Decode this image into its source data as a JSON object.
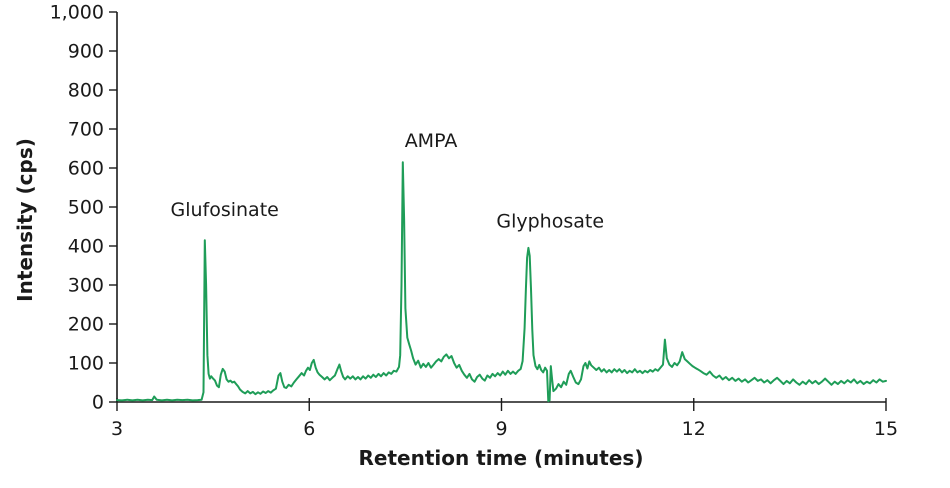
{
  "figure": {
    "background_color": "#ffffff",
    "text_color": "#1a1a1a",
    "axis_color": "#1a1a1a"
  },
  "chart_data": {
    "type": "line",
    "title": "",
    "xlabel": "Retention time (minutes)",
    "ylabel": "Intensity (cps)",
    "xlim": [
      3,
      15
    ],
    "ylim": [
      0,
      1000
    ],
    "xticks": [
      3,
      6,
      9,
      12,
      15
    ],
    "xtick_labels": [
      "3",
      "6",
      "9",
      "12",
      "15"
    ],
    "yticks": [
      0,
      100,
      200,
      300,
      400,
      500,
      600,
      700,
      800,
      900,
      1000
    ],
    "ytick_labels": [
      "0",
      "100",
      "200",
      "300",
      "400",
      "500",
      "600",
      "700",
      "800",
      "900",
      "1,000"
    ],
    "grid": false,
    "legend": "none",
    "line_color": "#1f9d58",
    "line_width": 2,
    "peaks": [
      {
        "name": "Glufosinate",
        "retention_time_min": 4.4,
        "apex_intensity_cps": 415
      },
      {
        "name": "AMPA",
        "retention_time_min": 7.5,
        "apex_intensity_cps": 615
      },
      {
        "name": "Glyphosate",
        "retention_time_min": 9.4,
        "apex_intensity_cps": 395
      }
    ],
    "annotations": [
      {
        "label": "Glufosinate",
        "t": 4.68,
        "intensity": 495
      },
      {
        "label": "AMPA",
        "t": 7.9,
        "intensity": 672
      },
      {
        "label": "Glyphosate",
        "t": 9.76,
        "intensity": 465
      }
    ],
    "series": [
      {
        "name": "chromatogram",
        "points": [
          [
            3.0,
            5
          ],
          [
            3.08,
            4
          ],
          [
            3.16,
            6
          ],
          [
            3.24,
            4
          ],
          [
            3.32,
            6
          ],
          [
            3.4,
            4
          ],
          [
            3.48,
            6
          ],
          [
            3.55,
            5
          ],
          [
            3.58,
            14
          ],
          [
            3.62,
            6
          ],
          [
            3.7,
            4
          ],
          [
            3.78,
            6
          ],
          [
            3.86,
            4
          ],
          [
            3.94,
            6
          ],
          [
            4.02,
            5
          ],
          [
            4.1,
            6
          ],
          [
            4.18,
            4
          ],
          [
            4.26,
            5
          ],
          [
            4.32,
            6
          ],
          [
            4.35,
            25
          ],
          [
            4.37,
            415
          ],
          [
            4.39,
            300
          ],
          [
            4.41,
            120
          ],
          [
            4.43,
            72
          ],
          [
            4.45,
            60
          ],
          [
            4.47,
            66
          ],
          [
            4.5,
            60
          ],
          [
            4.53,
            55
          ],
          [
            4.56,
            42
          ],
          [
            4.59,
            38
          ],
          [
            4.62,
            70
          ],
          [
            4.65,
            85
          ],
          [
            4.68,
            78
          ],
          [
            4.71,
            58
          ],
          [
            4.74,
            52
          ],
          [
            4.77,
            55
          ],
          [
            4.8,
            50
          ],
          [
            4.83,
            52
          ],
          [
            4.86,
            46
          ],
          [
            4.89,
            40
          ],
          [
            4.92,
            32
          ],
          [
            4.96,
            26
          ],
          [
            5.0,
            22
          ],
          [
            5.04,
            28
          ],
          [
            5.08,
            22
          ],
          [
            5.12,
            26
          ],
          [
            5.16,
            20
          ],
          [
            5.2,
            25
          ],
          [
            5.24,
            21
          ],
          [
            5.28,
            27
          ],
          [
            5.32,
            23
          ],
          [
            5.36,
            28
          ],
          [
            5.4,
            24
          ],
          [
            5.44,
            30
          ],
          [
            5.48,
            34
          ],
          [
            5.52,
            68
          ],
          [
            5.55,
            74
          ],
          [
            5.58,
            52
          ],
          [
            5.61,
            38
          ],
          [
            5.64,
            36
          ],
          [
            5.68,
            44
          ],
          [
            5.72,
            40
          ],
          [
            5.76,
            50
          ],
          [
            5.8,
            58
          ],
          [
            5.84,
            66
          ],
          [
            5.88,
            74
          ],
          [
            5.92,
            68
          ],
          [
            5.95,
            80
          ],
          [
            5.98,
            88
          ],
          [
            6.01,
            82
          ],
          [
            6.04,
            100
          ],
          [
            6.07,
            108
          ],
          [
            6.1,
            88
          ],
          [
            6.13,
            76
          ],
          [
            6.16,
            70
          ],
          [
            6.2,
            64
          ],
          [
            6.24,
            58
          ],
          [
            6.28,
            64
          ],
          [
            6.32,
            56
          ],
          [
            6.36,
            62
          ],
          [
            6.4,
            68
          ],
          [
            6.44,
            84
          ],
          [
            6.47,
            96
          ],
          [
            6.5,
            78
          ],
          [
            6.53,
            64
          ],
          [
            6.56,
            58
          ],
          [
            6.6,
            66
          ],
          [
            6.64,
            60
          ],
          [
            6.68,
            66
          ],
          [
            6.72,
            58
          ],
          [
            6.76,
            64
          ],
          [
            6.8,
            58
          ],
          [
            6.84,
            66
          ],
          [
            6.88,
            60
          ],
          [
            6.92,
            68
          ],
          [
            6.96,
            62
          ],
          [
            7.0,
            70
          ],
          [
            7.04,
            64
          ],
          [
            7.08,
            72
          ],
          [
            7.12,
            66
          ],
          [
            7.16,
            74
          ],
          [
            7.2,
            68
          ],
          [
            7.24,
            76
          ],
          [
            7.28,
            72
          ],
          [
            7.32,
            80
          ],
          [
            7.36,
            78
          ],
          [
            7.4,
            90
          ],
          [
            7.42,
            120
          ],
          [
            7.44,
            300
          ],
          [
            7.46,
            615
          ],
          [
            7.48,
            470
          ],
          [
            7.5,
            240
          ],
          [
            7.53,
            165
          ],
          [
            7.56,
            148
          ],
          [
            7.59,
            132
          ],
          [
            7.62,
            112
          ],
          [
            7.66,
            96
          ],
          [
            7.7,
            106
          ],
          [
            7.74,
            88
          ],
          [
            7.78,
            98
          ],
          [
            7.82,
            90
          ],
          [
            7.86,
            100
          ],
          [
            7.9,
            88
          ],
          [
            7.94,
            96
          ],
          [
            7.98,
            104
          ],
          [
            8.02,
            110
          ],
          [
            8.06,
            104
          ],
          [
            8.1,
            116
          ],
          [
            8.14,
            122
          ],
          [
            8.18,
            112
          ],
          [
            8.22,
            118
          ],
          [
            8.26,
            100
          ],
          [
            8.3,
            88
          ],
          [
            8.34,
            95
          ],
          [
            8.38,
            80
          ],
          [
            8.42,
            70
          ],
          [
            8.46,
            62
          ],
          [
            8.5,
            72
          ],
          [
            8.54,
            58
          ],
          [
            8.58,
            52
          ],
          [
            8.62,
            64
          ],
          [
            8.66,
            70
          ],
          [
            8.7,
            60
          ],
          [
            8.74,
            55
          ],
          [
            8.78,
            68
          ],
          [
            8.82,
            62
          ],
          [
            8.86,
            72
          ],
          [
            8.9,
            66
          ],
          [
            8.94,
            74
          ],
          [
            8.98,
            68
          ],
          [
            9.02,
            78
          ],
          [
            9.06,
            70
          ],
          [
            9.1,
            80
          ],
          [
            9.14,
            72
          ],
          [
            9.18,
            78
          ],
          [
            9.22,
            72
          ],
          [
            9.26,
            80
          ],
          [
            9.3,
            85
          ],
          [
            9.33,
            105
          ],
          [
            9.36,
            190
          ],
          [
            9.38,
            290
          ],
          [
            9.4,
            370
          ],
          [
            9.42,
            395
          ],
          [
            9.44,
            375
          ],
          [
            9.46,
            290
          ],
          [
            9.48,
            185
          ],
          [
            9.5,
            120
          ],
          [
            9.53,
            92
          ],
          [
            9.56,
            84
          ],
          [
            9.59,
            95
          ],
          [
            9.62,
            82
          ],
          [
            9.65,
            76
          ],
          [
            9.68,
            88
          ],
          [
            9.71,
            80
          ],
          [
            9.73,
            2
          ],
          [
            9.75,
            4
          ],
          [
            9.77,
            92
          ],
          [
            9.79,
            58
          ],
          [
            9.81,
            28
          ],
          [
            9.85,
            34
          ],
          [
            9.89,
            46
          ],
          [
            9.93,
            38
          ],
          [
            9.97,
            52
          ],
          [
            10.01,
            44
          ],
          [
            10.05,
            72
          ],
          [
            10.08,
            80
          ],
          [
            10.12,
            64
          ],
          [
            10.16,
            50
          ],
          [
            10.2,
            46
          ],
          [
            10.24,
            58
          ],
          [
            10.28,
            92
          ],
          [
            10.31,
            100
          ],
          [
            10.34,
            86
          ],
          [
            10.37,
            104
          ],
          [
            10.4,
            94
          ],
          [
            10.44,
            88
          ],
          [
            10.48,
            82
          ],
          [
            10.52,
            88
          ],
          [
            10.56,
            78
          ],
          [
            10.6,
            84
          ],
          [
            10.64,
            76
          ],
          [
            10.68,
            82
          ],
          [
            10.72,
            76
          ],
          [
            10.76,
            84
          ],
          [
            10.8,
            78
          ],
          [
            10.84,
            84
          ],
          [
            10.88,
            76
          ],
          [
            10.92,
            82
          ],
          [
            10.96,
            74
          ],
          [
            11.0,
            80
          ],
          [
            11.04,
            76
          ],
          [
            11.08,
            84
          ],
          [
            11.12,
            76
          ],
          [
            11.16,
            80
          ],
          [
            11.2,
            74
          ],
          [
            11.24,
            80
          ],
          [
            11.28,
            76
          ],
          [
            11.32,
            82
          ],
          [
            11.36,
            78
          ],
          [
            11.4,
            84
          ],
          [
            11.44,
            80
          ],
          [
            11.48,
            88
          ],
          [
            11.52,
            96
          ],
          [
            11.55,
            160
          ],
          [
            11.58,
            112
          ],
          [
            11.62,
            96
          ],
          [
            11.66,
            90
          ],
          [
            11.7,
            100
          ],
          [
            11.74,
            94
          ],
          [
            11.78,
            104
          ],
          [
            11.82,
            128
          ],
          [
            11.86,
            110
          ],
          [
            11.9,
            104
          ],
          [
            11.94,
            98
          ],
          [
            11.98,
            92
          ],
          [
            12.02,
            88
          ],
          [
            12.06,
            84
          ],
          [
            12.1,
            80
          ],
          [
            12.15,
            74
          ],
          [
            12.2,
            70
          ],
          [
            12.25,
            78
          ],
          [
            12.3,
            68
          ],
          [
            12.35,
            62
          ],
          [
            12.4,
            68
          ],
          [
            12.45,
            58
          ],
          [
            12.5,
            64
          ],
          [
            12.55,
            56
          ],
          [
            12.6,
            62
          ],
          [
            12.65,
            54
          ],
          [
            12.7,
            60
          ],
          [
            12.75,
            52
          ],
          [
            12.8,
            58
          ],
          [
            12.85,
            50
          ],
          [
            12.9,
            56
          ],
          [
            12.95,
            62
          ],
          [
            13.0,
            54
          ],
          [
            13.05,
            58
          ],
          [
            13.1,
            50
          ],
          [
            13.15,
            56
          ],
          [
            13.2,
            48
          ],
          [
            13.25,
            56
          ],
          [
            13.3,
            62
          ],
          [
            13.35,
            54
          ],
          [
            13.4,
            46
          ],
          [
            13.45,
            54
          ],
          [
            13.5,
            48
          ],
          [
            13.55,
            58
          ],
          [
            13.6,
            50
          ],
          [
            13.65,
            44
          ],
          [
            13.7,
            52
          ],
          [
            13.75,
            46
          ],
          [
            13.8,
            56
          ],
          [
            13.85,
            48
          ],
          [
            13.9,
            54
          ],
          [
            13.95,
            46
          ],
          [
            14.0,
            52
          ],
          [
            14.05,
            60
          ],
          [
            14.1,
            52
          ],
          [
            14.15,
            44
          ],
          [
            14.2,
            52
          ],
          [
            14.25,
            46
          ],
          [
            14.3,
            54
          ],
          [
            14.35,
            48
          ],
          [
            14.4,
            56
          ],
          [
            14.45,
            50
          ],
          [
            14.5,
            58
          ],
          [
            14.55,
            48
          ],
          [
            14.6,
            54
          ],
          [
            14.65,
            46
          ],
          [
            14.7,
            52
          ],
          [
            14.75,
            48
          ],
          [
            14.8,
            56
          ],
          [
            14.85,
            50
          ],
          [
            14.9,
            58
          ],
          [
            14.95,
            52
          ],
          [
            15.0,
            54
          ]
        ]
      }
    ]
  }
}
